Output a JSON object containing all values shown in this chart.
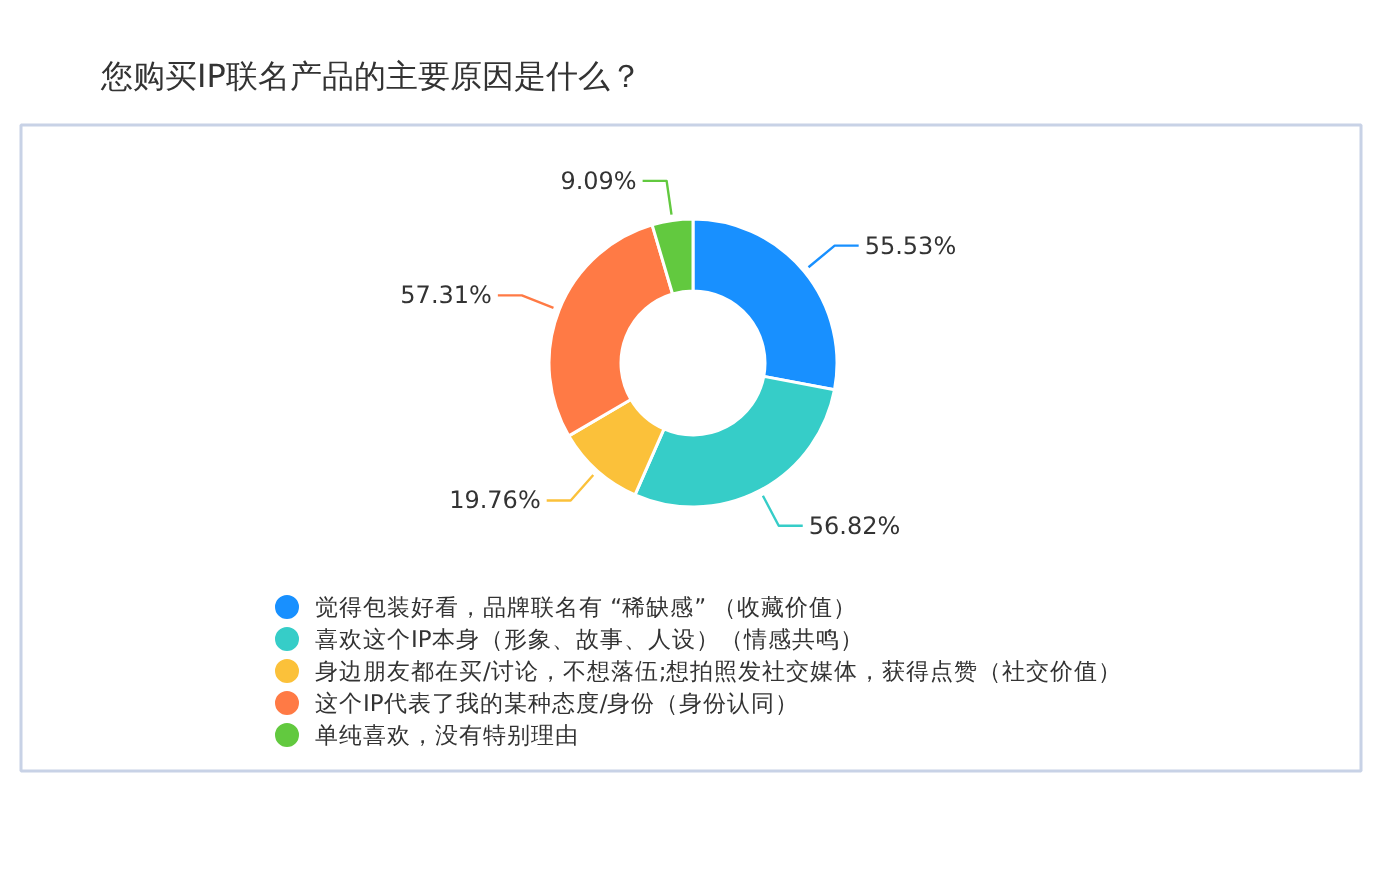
{
  "chart_data": {
    "type": "donut",
    "title": "您购买IP联名产品的主要原因是什么？",
    "categories": [
      "觉得包装好看，品牌联名有 “稀缺感” （收藏价值）",
      "喜欢这个IP本身（形象、故事、人设）（情感共鸣）",
      "身边朋友都在买/讨论，不想落伍;想拍照发社交媒体，获得点赞（社交价值）",
      "这个IP代表了我的某种态度/身份（身份认同）",
      "单纯喜欢，没有特别理由"
    ],
    "values": [
      55.53,
      56.82,
      19.76,
      57.31,
      9.09
    ],
    "colors": [
      "#1890ff",
      "#36cdc8",
      "#fbc13a",
      "#ff7a45",
      "#62c93f"
    ],
    "value_labels": [
      "55.53%",
      "56.82%",
      "19.76%",
      "57.31%",
      "9.09%"
    ],
    "legend": "bottom"
  }
}
